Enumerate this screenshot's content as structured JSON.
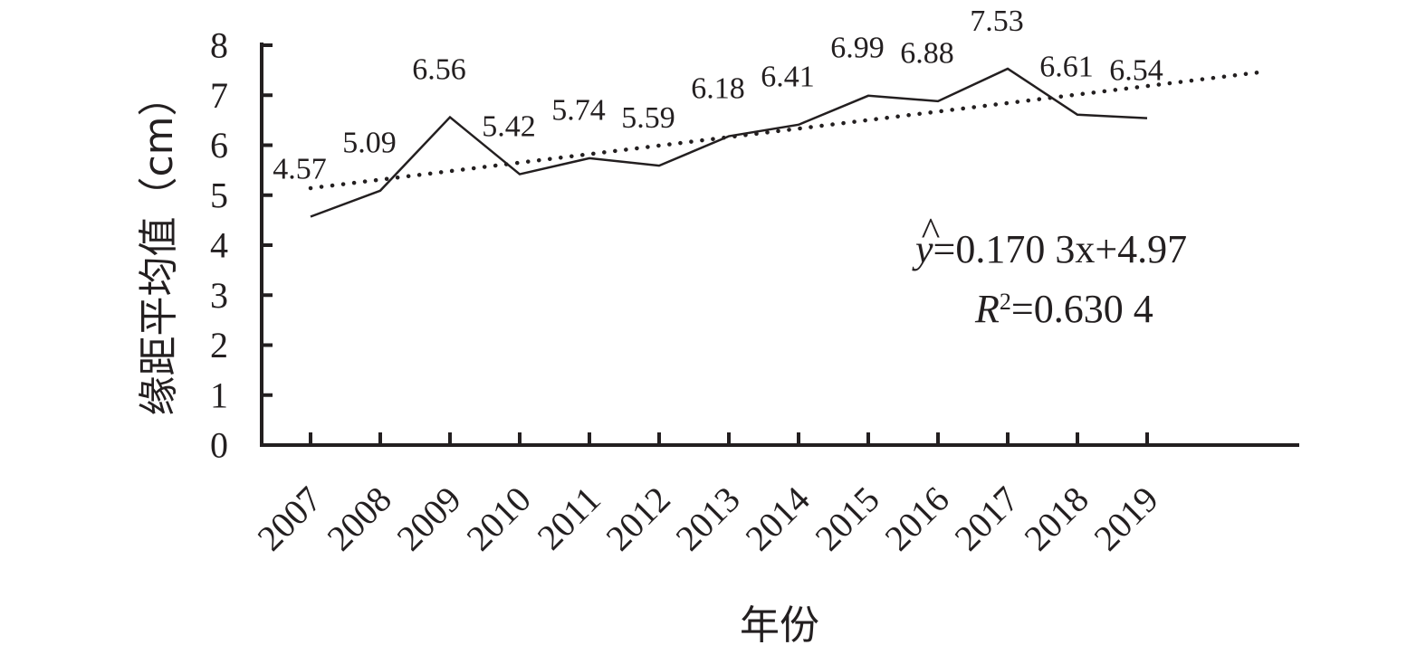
{
  "chart_data": {
    "type": "line",
    "categories": [
      "2007",
      "2008",
      "2009",
      "2010",
      "2011",
      "2012",
      "2013",
      "2014",
      "2015",
      "2016",
      "2017",
      "2018",
      "2019"
    ],
    "series": [
      {
        "values": [
          4.57,
          5.09,
          6.56,
          5.42,
          5.74,
          5.59,
          6.18,
          6.41,
          6.99,
          6.88,
          7.53,
          6.61,
          6.54
        ],
        "data_labels": [
          "4.57",
          "5.09",
          "6.56",
          "5.42",
          "5.74",
          "5.59",
          "6.18",
          "6.41",
          "6.99",
          "6.88",
          "7.53",
          "6.61",
          "6.54"
        ],
        "style": "solid",
        "color": "#231f20"
      }
    ],
    "trendline": {
      "type": "linear",
      "style": "dotted",
      "slope": 0.1703,
      "intercept": 4.97,
      "equation_lhs": "y",
      "equation_rhs": "=0.170 3x+4.97",
      "r2_symbol": "R",
      "r2_superscript": "2",
      "r2_text": "=0.630 4"
    },
    "xlabel": "年份",
    "ylabel": "缘距平均值（cm）",
    "ylim": [
      0,
      8
    ],
    "yticks": [
      "0",
      "1",
      "2",
      "3",
      "4",
      "5",
      "6",
      "7",
      "8"
    ],
    "grid": false,
    "legend": "none"
  }
}
